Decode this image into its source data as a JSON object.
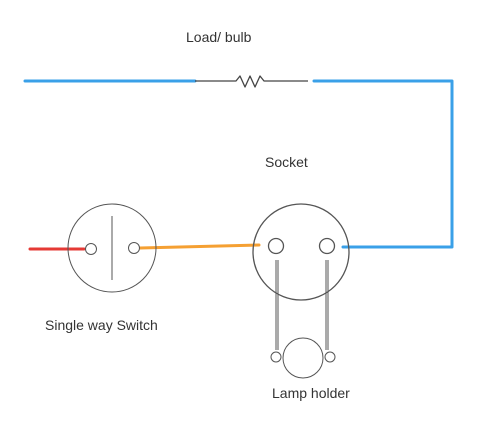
{
  "labels": {
    "load_bulb": "Load/ bulb",
    "socket": "Socket",
    "switch": "Single way Switch",
    "lamp_holder": "Lamp holder"
  },
  "colors": {
    "live_wire": "#e53935",
    "switched_wire": "#f5a033",
    "neutral_wire": "#3aa0e8",
    "component_outline": "#555555",
    "resistor_line": "#444444"
  },
  "icons": {
    "load": "resistor-symbol",
    "switch": "single-way-switch-symbol",
    "socket": "socket-symbol",
    "lamp_holder": "lamp-holder-symbol"
  }
}
